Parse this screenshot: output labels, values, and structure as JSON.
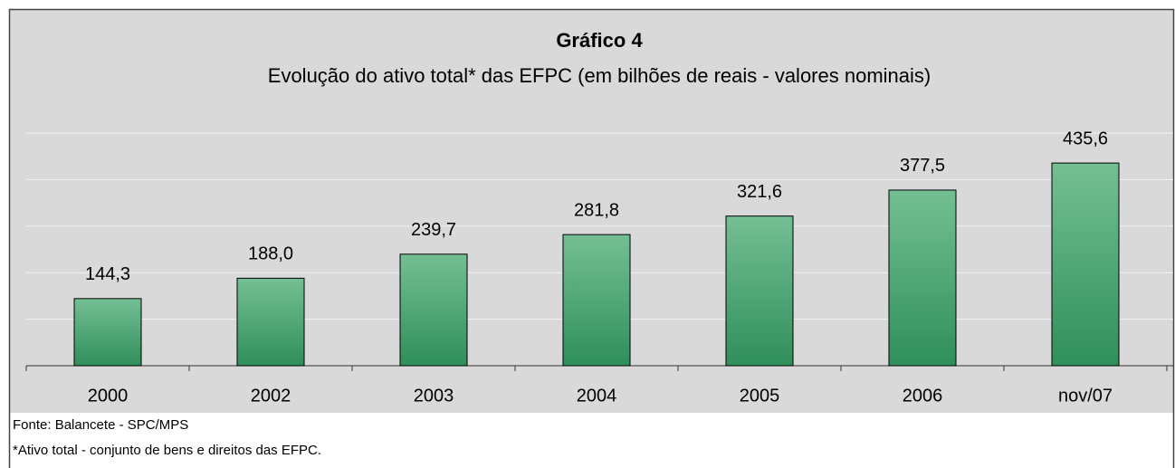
{
  "chart_data": {
    "type": "bar",
    "title": "Gráfico 4",
    "subtitle": "Evolução do ativo total* das EFPC (em bilhões de reais - valores nominais)",
    "categories": [
      "2000",
      "2002",
      "2003",
      "2004",
      "2005",
      "2006",
      "nov/07"
    ],
    "values": [
      144.3,
      188.0,
      239.7,
      281.8,
      321.6,
      377.5,
      435.6
    ],
    "value_labels": [
      "144,3",
      "188,0",
      "239,7",
      "281,8",
      "321,6",
      "377,5",
      "435,6"
    ],
    "color": "#3f9a68",
    "ylim": [
      0,
      500
    ],
    "yticks": [
      0,
      100,
      200,
      300,
      400,
      500
    ],
    "grid": true,
    "notes": [
      "Fonte: Balancete - SPC/MPS",
      "*Ativo total - conjunto de bens e direitos das EFPC."
    ]
  }
}
